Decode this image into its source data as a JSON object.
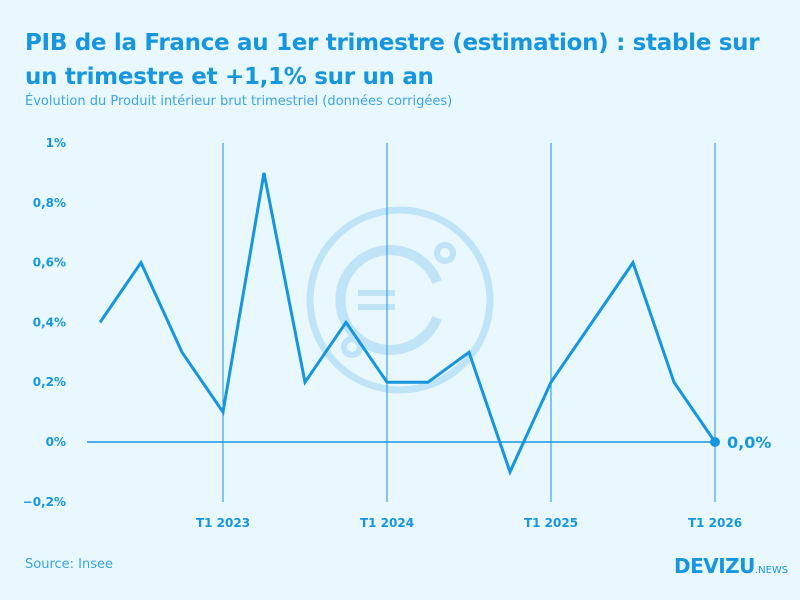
{
  "title": "PIB de la France au 1er trimestre (estimation) : stable sur un trimestre et +1,1% sur un an",
  "subtitle": "Évolution du Produit intérieur brut trimestriel (données corrigées)",
  "source": "Source: Insee",
  "logo": {
    "main": "DEVIZU",
    "suffix": ".NEWS"
  },
  "colors": {
    "accent": "#1796e0",
    "background": "#e9f7fe",
    "watermark": "#bfe3f7"
  },
  "chart_data": {
    "type": "line",
    "x": [
      "T2 2022",
      "T3 2022",
      "T4 2022",
      "T1 2023",
      "T2 2023",
      "T3 2023",
      "T4 2023",
      "T1 2024",
      "T2 2024",
      "T3 2024",
      "T4 2024",
      "T1 2025",
      "T2 2025",
      "T3 2025",
      "T4 2025",
      "T1 2026"
    ],
    "values": [
      0.4,
      0.6,
      0.3,
      0.1,
      0.9,
      0.2,
      0.4,
      0.2,
      0.2,
      0.3,
      -0.1,
      0.2,
      0.4,
      0.6,
      0.2,
      0.0
    ],
    "ylim": [
      -0.2,
      1
    ],
    "yticks": [
      {
        "v": 1,
        "label": "1%"
      },
      {
        "v": 0.8,
        "label": "0,8%"
      },
      {
        "v": 0.6,
        "label": "0,6%"
      },
      {
        "v": 0.4,
        "label": "0,4%"
      },
      {
        "v": 0.2,
        "label": "0,2%"
      },
      {
        "v": 0,
        "label": "0%"
      },
      {
        "v": -0.2,
        "label": "−0,2%"
      }
    ],
    "xticks": [
      {
        "x": "T1 2023",
        "label": "T1 2023"
      },
      {
        "x": "T1 2024",
        "label": "T1 2024"
      },
      {
        "x": "T1 2025",
        "label": "T1 2025"
      },
      {
        "x": "T1 2026",
        "label": "T1 2026"
      }
    ],
    "last_label": "0,0%",
    "grid": "vertical lines at year starts"
  }
}
